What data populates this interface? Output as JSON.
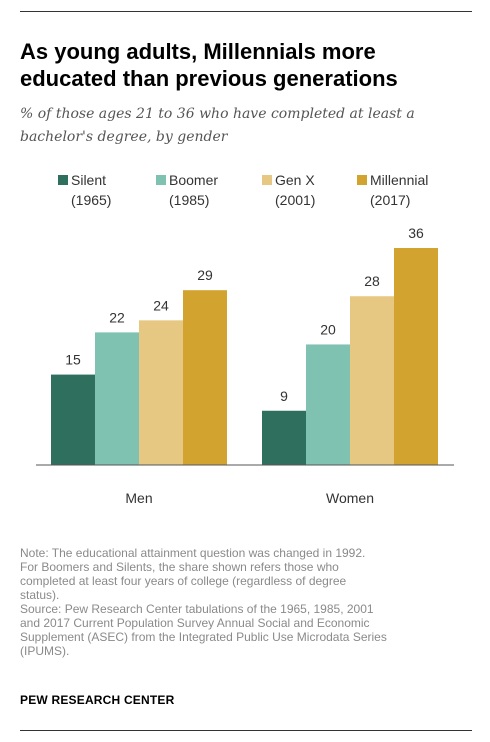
{
  "chart_data": {
    "type": "bar",
    "title": "As young adults, Millennials more educated than previous generations",
    "subtitle": "% of those ages 21 to 36 who have completed at least a bachelor's degree, by gender",
    "categories": [
      "Men",
      "Women"
    ],
    "series": [
      {
        "name": "Silent",
        "label": "(1965)",
        "color": "#2f6f5e",
        "values": [
          15,
          9
        ]
      },
      {
        "name": "Boomer",
        "label": "(1985)",
        "color": "#7fc2b2",
        "values": [
          22,
          20
        ]
      },
      {
        "name": "Gen X",
        "label": "(2001)",
        "color": "#e7c883",
        "values": [
          24,
          28
        ]
      },
      {
        "name": "Millennial",
        "label": "(2017)",
        "color": "#d3a32f",
        "values": [
          29,
          36
        ]
      }
    ],
    "ylim": [
      0,
      36
    ],
    "grid": false,
    "legend_position": "top"
  },
  "notes": {
    "note": "Note: The educational attainment question was changed in 1992.\nFor Boomers and Silents, the share shown refers those who\ncompleted at least four years of college (regardless of degree\nstatus).",
    "source": "Source: Pew Research Center tabulations of the 1965, 1985, 2001\nand 2017 Current Population Survey Annual Social and Economic\nSupplement (ASEC) from the Integrated Public Use Microdata Series\n(IPUMS)."
  },
  "brand": "PEW RESEARCH CENTER"
}
